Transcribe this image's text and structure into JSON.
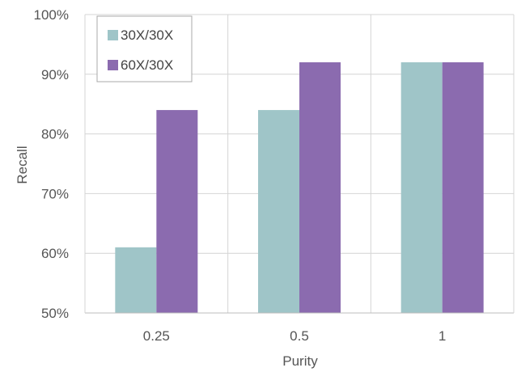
{
  "chart_data": {
    "type": "bar",
    "categories": [
      "0.25",
      "0.5",
      "1"
    ],
    "series": [
      {
        "name": "30X/30X",
        "values": [
          61,
          84,
          92
        ],
        "color": "#9fc5c8"
      },
      {
        "name": "60X/30X",
        "values": [
          84,
          92,
          92
        ],
        "color": "#8b6baf"
      }
    ],
    "xlabel": "Purity",
    "ylabel": "Recall",
    "ylim": [
      50,
      100
    ],
    "yticks": [
      50,
      60,
      70,
      80,
      90,
      100
    ],
    "ytick_labels": [
      "50%",
      "60%",
      "70%",
      "80%",
      "90%",
      "100%"
    ],
    "grid": true,
    "legend_position": "top-left"
  }
}
